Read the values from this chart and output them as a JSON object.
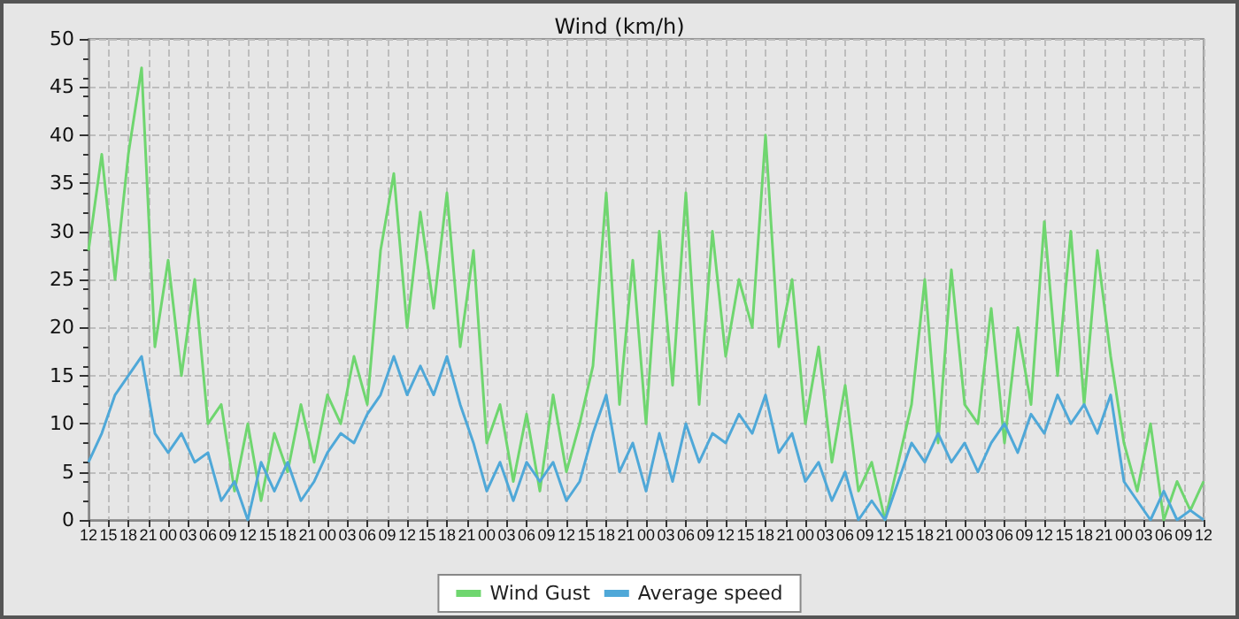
{
  "chart_data": {
    "type": "line",
    "title": "Wind (km/h)",
    "x": [
      12,
      14,
      16,
      18,
      20,
      22,
      24,
      26,
      28,
      30,
      32,
      34,
      36,
      38,
      40,
      42,
      44,
      46,
      48,
      50,
      52,
      54,
      56,
      58,
      60,
      62,
      64,
      66,
      68,
      70,
      72,
      74,
      76,
      78,
      80,
      82,
      84,
      86,
      88,
      90,
      92,
      94,
      96,
      98,
      100,
      102,
      104,
      106,
      108,
      110,
      112,
      114,
      116,
      118,
      120,
      122,
      124,
      126,
      128,
      130,
      132,
      134,
      136,
      138,
      140,
      142,
      144,
      146,
      148,
      150,
      152,
      154,
      156,
      158,
      160,
      162,
      164,
      166,
      168,
      170,
      172,
      174,
      176,
      178,
      180
    ],
    "series": [
      {
        "name": "Wind Gust",
        "color": "#6fd66f",
        "values": [
          28,
          38,
          25,
          38,
          47,
          18,
          27,
          15,
          25,
          10,
          12,
          3,
          10,
          2,
          9,
          5,
          12,
          6,
          13,
          10,
          17,
          12,
          28,
          36,
          20,
          32,
          22,
          34,
          18,
          28,
          8,
          12,
          4,
          11,
          3,
          13,
          5,
          10,
          16,
          34,
          12,
          27,
          10,
          30,
          14,
          34,
          12,
          30,
          17,
          25,
          20,
          40,
          18,
          25,
          10,
          18,
          6,
          14,
          3,
          6,
          0,
          6,
          12,
          25,
          8,
          26,
          12,
          10,
          22,
          8,
          20,
          12,
          31,
          15,
          30,
          12,
          28,
          17,
          8,
          3,
          10,
          0,
          4,
          1,
          4
        ]
      },
      {
        "name": "Average speed",
        "color": "#4fa8d8",
        "values": [
          6,
          9,
          13,
          15,
          17,
          9,
          7,
          9,
          6,
          7,
          2,
          4,
          0,
          6,
          3,
          6,
          2,
          4,
          7,
          9,
          8,
          11,
          13,
          17,
          13,
          16,
          13,
          17,
          12,
          8,
          3,
          6,
          2,
          6,
          4,
          6,
          2,
          4,
          9,
          13,
          5,
          8,
          3,
          9,
          4,
          10,
          6,
          9,
          8,
          11,
          9,
          13,
          7,
          9,
          4,
          6,
          2,
          5,
          0,
          2,
          0,
          4,
          8,
          6,
          9,
          6,
          8,
          5,
          8,
          10,
          7,
          11,
          9,
          13,
          10,
          12,
          9,
          13,
          4,
          2,
          0,
          3,
          0,
          1,
          0
        ]
      }
    ],
    "xlim": [
      12,
      180
    ],
    "xticks": [
      {
        "value": 12,
        "label": "12"
      },
      {
        "value": 15,
        "label": "15"
      },
      {
        "value": 18,
        "label": "18"
      },
      {
        "value": 21,
        "label": "21"
      },
      {
        "value": 24,
        "label": "00"
      },
      {
        "value": 27,
        "label": "03"
      },
      {
        "value": 30,
        "label": "06"
      },
      {
        "value": 33,
        "label": "09"
      },
      {
        "value": 36,
        "label": "12"
      },
      {
        "value": 39,
        "label": "15"
      },
      {
        "value": 42,
        "label": "18"
      },
      {
        "value": 45,
        "label": "21"
      },
      {
        "value": 48,
        "label": "00"
      },
      {
        "value": 51,
        "label": "03"
      },
      {
        "value": 54,
        "label": "06"
      },
      {
        "value": 57,
        "label": "09"
      },
      {
        "value": 60,
        "label": "12"
      },
      {
        "value": 63,
        "label": "15"
      },
      {
        "value": 66,
        "label": "18"
      },
      {
        "value": 69,
        "label": "21"
      },
      {
        "value": 72,
        "label": "00"
      },
      {
        "value": 75,
        "label": "03"
      },
      {
        "value": 78,
        "label": "06"
      },
      {
        "value": 81,
        "label": "09"
      },
      {
        "value": 84,
        "label": "12"
      },
      {
        "value": 87,
        "label": "15"
      },
      {
        "value": 90,
        "label": "18"
      },
      {
        "value": 93,
        "label": "21"
      },
      {
        "value": 96,
        "label": "00"
      },
      {
        "value": 99,
        "label": "03"
      },
      {
        "value": 102,
        "label": "06"
      },
      {
        "value": 105,
        "label": "09"
      },
      {
        "value": 108,
        "label": "12"
      },
      {
        "value": 111,
        "label": "15"
      },
      {
        "value": 114,
        "label": "18"
      },
      {
        "value": 117,
        "label": "21"
      },
      {
        "value": 120,
        "label": "00"
      },
      {
        "value": 123,
        "label": "03"
      },
      {
        "value": 126,
        "label": "06"
      },
      {
        "value": 129,
        "label": "09"
      },
      {
        "value": 132,
        "label": "12"
      },
      {
        "value": 135,
        "label": "15"
      },
      {
        "value": 138,
        "label": "18"
      },
      {
        "value": 141,
        "label": "21"
      },
      {
        "value": 144,
        "label": "00"
      },
      {
        "value": 147,
        "label": "03"
      },
      {
        "value": 150,
        "label": "06"
      },
      {
        "value": 153,
        "label": "09"
      },
      {
        "value": 156,
        "label": "12"
      },
      {
        "value": 159,
        "label": "15"
      },
      {
        "value": 162,
        "label": "18"
      },
      {
        "value": 165,
        "label": "21"
      },
      {
        "value": 168,
        "label": "00"
      },
      {
        "value": 171,
        "label": "03"
      },
      {
        "value": 174,
        "label": "06"
      },
      {
        "value": 177,
        "label": "09"
      },
      {
        "value": 180,
        "label": "12"
      }
    ],
    "ylim": [
      0,
      50
    ],
    "yticks": [
      0,
      5,
      10,
      15,
      20,
      25,
      30,
      35,
      40,
      45,
      50
    ],
    "grid": true,
    "legend": "bottom",
    "marker": "none",
    "line_style": "solid"
  }
}
